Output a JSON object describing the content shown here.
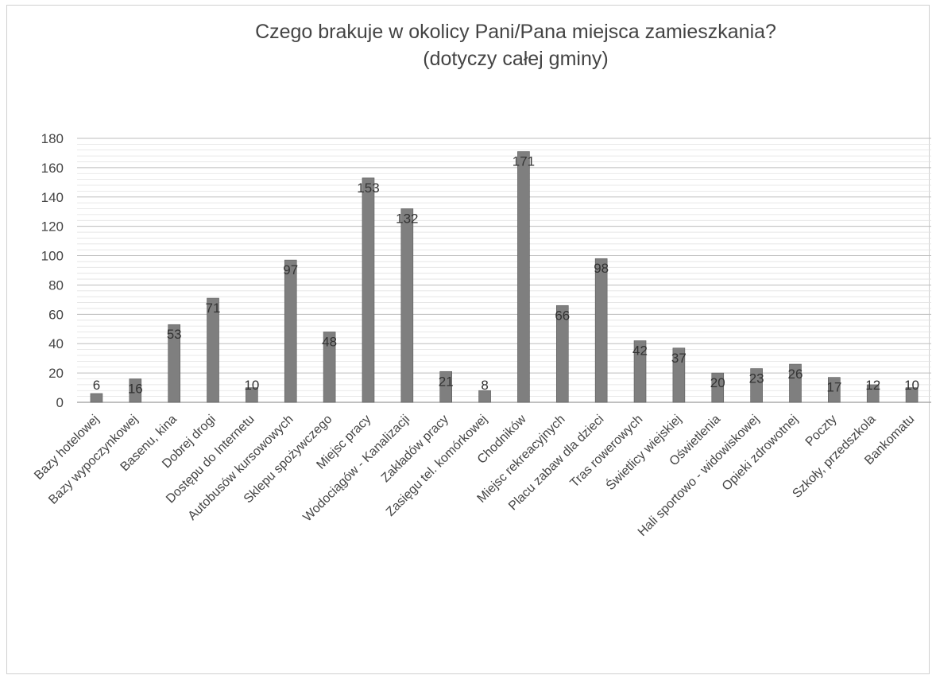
{
  "chart_data": {
    "type": "bar",
    "title": "Czego brakuje w okolicy Pani/Pana miejsca zamieszkania?",
    "subtitle": "(dotyczy całej gminy)",
    "xlabel": "",
    "ylabel": "",
    "ylim": [
      0,
      180
    ],
    "yticks": [
      0,
      20,
      40,
      60,
      80,
      100,
      120,
      140,
      160,
      180
    ],
    "grid": true,
    "legend": "none",
    "bar_color": "#7f7f7f",
    "categories": [
      "Bazy hotelowej",
      "Bazy wypoczynkowej",
      "Basenu, kina",
      "Dobrej drogi",
      "Dostępu do Internetu",
      "Autobusów kursowowych",
      "Sklepu spożywczego",
      "Miejsc pracy",
      "Wodociągów - Kanalizacji",
      "Zakładów pracy",
      "Zasięgu tel. komórkowej",
      "Chodników",
      "Miejsc rekreacyjnych",
      "Placu zabaw dla dzieci",
      "Tras rowerowych",
      "Świetlicy wiejskiej",
      "Oświetlenia",
      "Hali sportowo - widowiskowej",
      "Opieki zdrowotnej",
      "Poczty",
      "Szkoły, przedszkola",
      "Bankomatu"
    ],
    "values": [
      6,
      16,
      53,
      71,
      10,
      97,
      48,
      153,
      132,
      21,
      8,
      171,
      66,
      98,
      42,
      37,
      20,
      23,
      26,
      17,
      12,
      10
    ]
  }
}
